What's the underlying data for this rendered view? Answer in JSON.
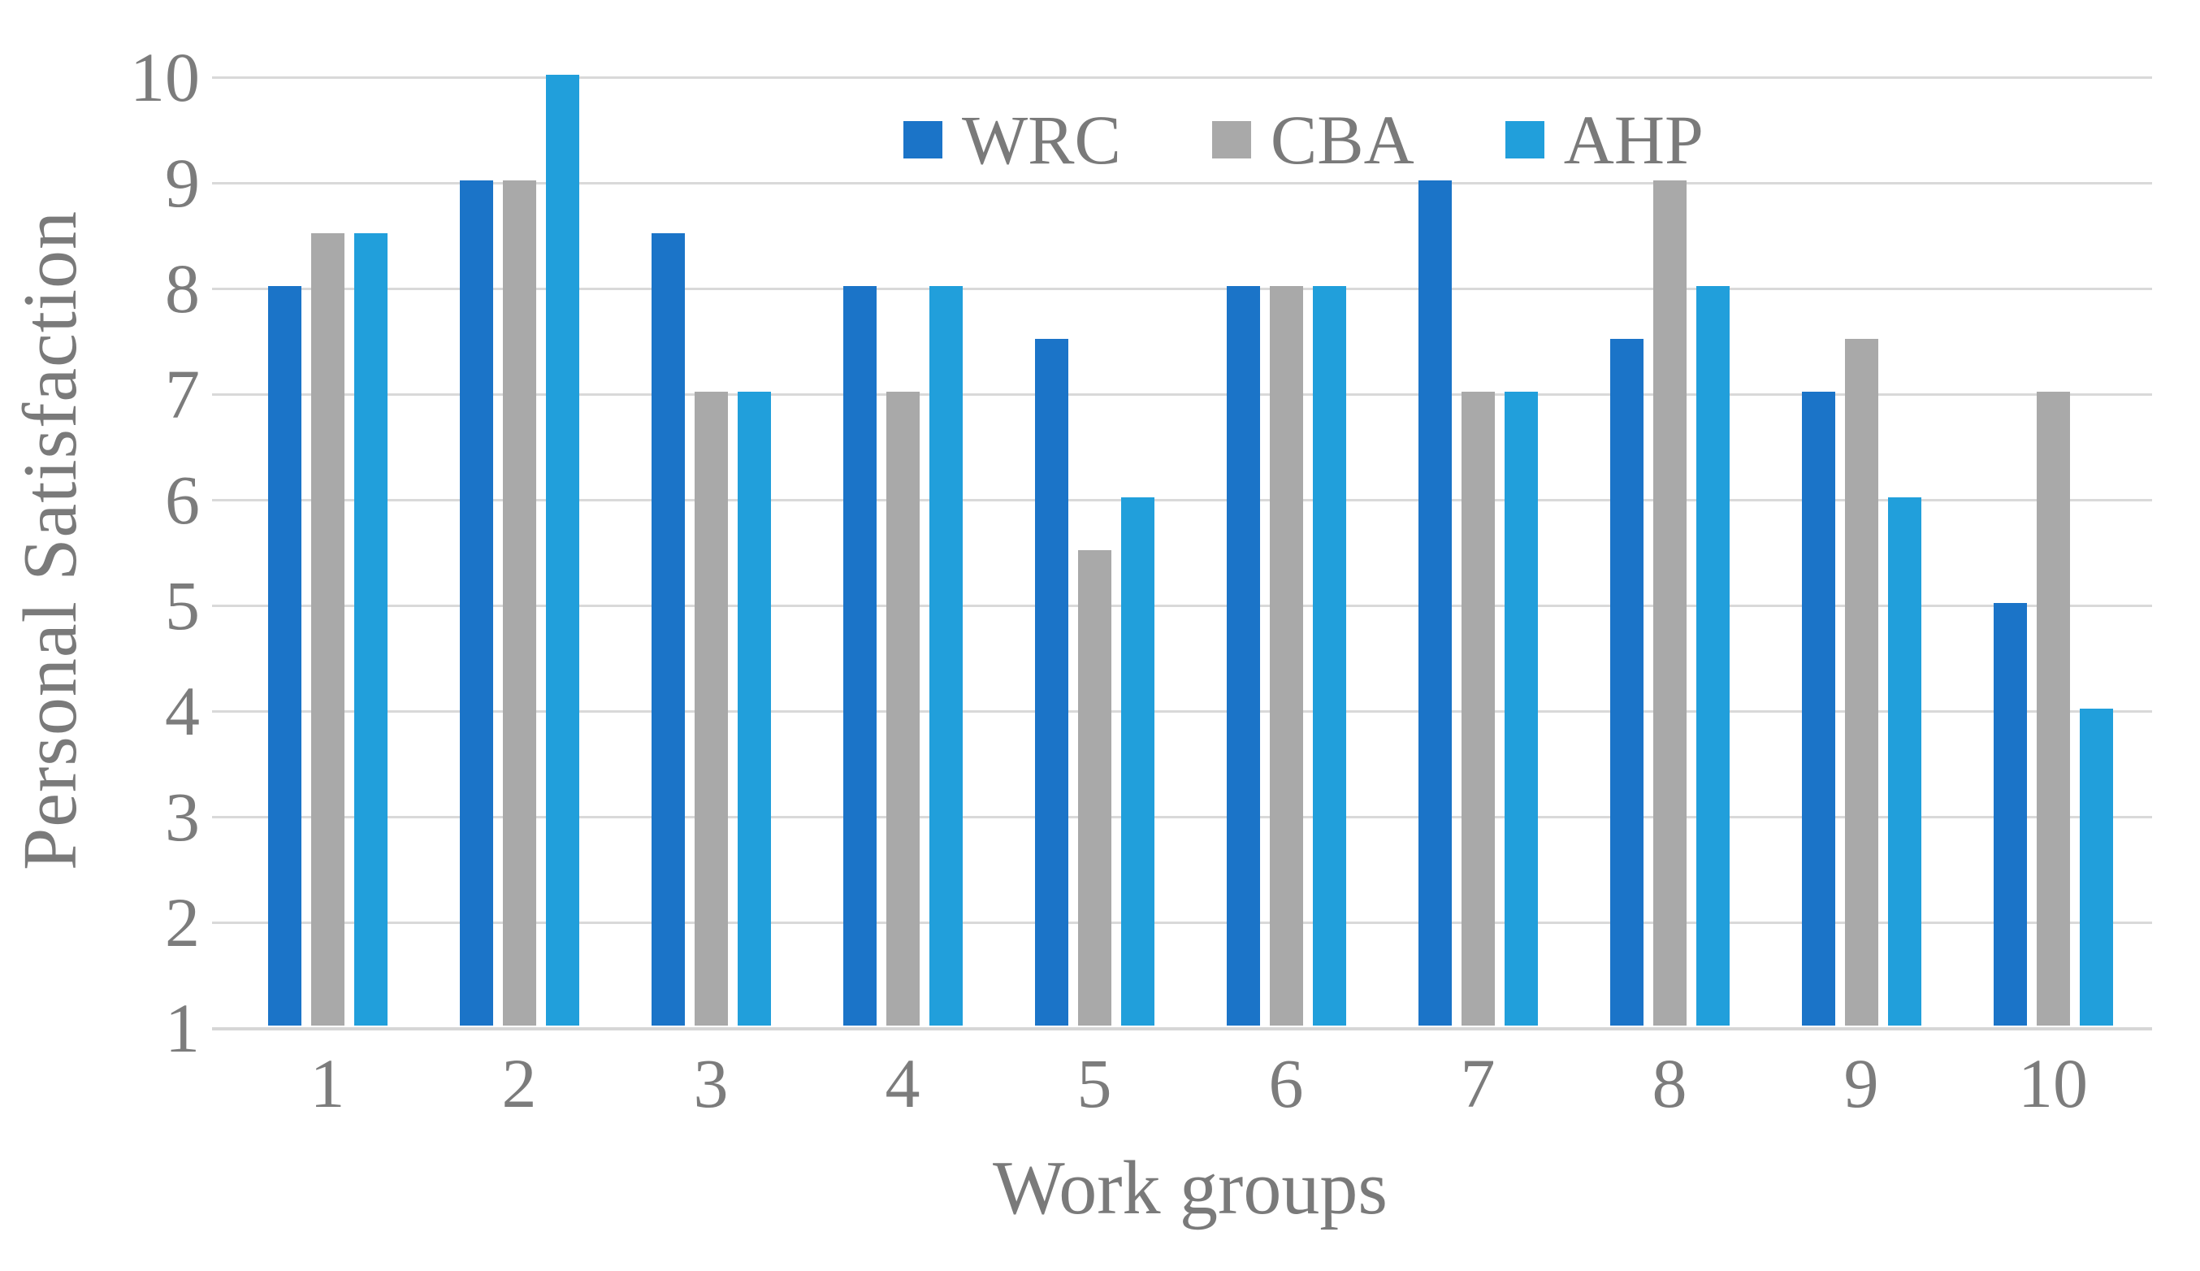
{
  "chart_data": {
    "type": "bar",
    "title": "",
    "xlabel": "Work groups",
    "ylabel": "Personal Satisfaction",
    "categories": [
      "1",
      "2",
      "3",
      "4",
      "5",
      "6",
      "7",
      "8",
      "9",
      "10"
    ],
    "series": [
      {
        "name": "WRC",
        "color": "#1b74c8",
        "values": [
          8,
          9,
          8.5,
          8,
          7.5,
          8,
          9,
          7.5,
          7,
          5
        ]
      },
      {
        "name": "CBA",
        "color": "#a9a9a9",
        "values": [
          8.5,
          9,
          7,
          7,
          5.5,
          8,
          7,
          9,
          7.5,
          7
        ]
      },
      {
        "name": "AHP",
        "color": "#219fdb",
        "values": [
          8.5,
          10,
          7,
          8,
          6,
          8,
          7,
          8,
          6,
          4
        ]
      }
    ],
    "ylim": [
      1,
      10
    ],
    "yticks": [
      1,
      2,
      3,
      4,
      5,
      6,
      7,
      8,
      9,
      10
    ],
    "grid": true,
    "legend_position": "top-center-inside",
    "colors": {
      "gridline": "#d9d9d9",
      "axis_text": "#7c7c7c"
    }
  }
}
